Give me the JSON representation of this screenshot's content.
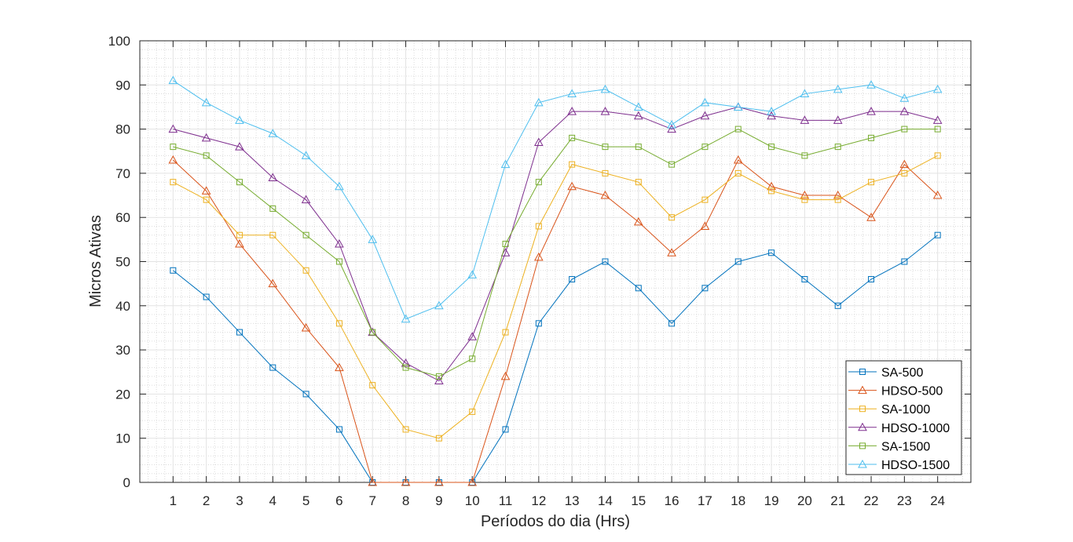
{
  "chart_data": {
    "type": "line",
    "title": "",
    "xlabel": "Períodos do dia (Hrs)",
    "ylabel": "Micros Ativas",
    "x": [
      1,
      2,
      3,
      4,
      5,
      6,
      7,
      8,
      9,
      10,
      11,
      12,
      13,
      14,
      15,
      16,
      17,
      18,
      19,
      20,
      21,
      22,
      23,
      24
    ],
    "xlim": [
      0,
      25
    ],
    "ylim": [
      0,
      100
    ],
    "yticks": [
      0,
      10,
      20,
      30,
      40,
      50,
      60,
      70,
      80,
      90,
      100
    ],
    "grid": true,
    "minor_grid": true,
    "legend_position": "bottom-right",
    "series": [
      {
        "name": "SA-500",
        "marker": "square",
        "color": "#0072BD",
        "values": [
          48,
          42,
          34,
          26,
          20,
          12,
          0,
          0,
          0,
          0,
          12,
          36,
          46,
          50,
          44,
          36,
          44,
          50,
          52,
          46,
          40,
          46,
          50,
          56
        ]
      },
      {
        "name": "HDSO-500",
        "marker": "triangle",
        "color": "#D95319",
        "values": [
          73,
          66,
          54,
          45,
          35,
          26,
          0,
          0,
          0,
          0,
          24,
          51,
          67,
          65,
          59,
          52,
          58,
          73,
          67,
          65,
          65,
          60,
          72,
          65
        ]
      },
      {
        "name": "SA-1000",
        "marker": "square",
        "color": "#EDB120",
        "values": [
          68,
          64,
          56,
          56,
          48,
          36,
          22,
          12,
          10,
          16,
          34,
          58,
          72,
          70,
          68,
          60,
          64,
          70,
          66,
          64,
          64,
          68,
          70,
          74
        ]
      },
      {
        "name": "HDSO-1000",
        "marker": "triangle",
        "color": "#7E2F8E",
        "values": [
          80,
          78,
          76,
          69,
          64,
          54,
          34,
          27,
          23,
          33,
          52,
          77,
          84,
          84,
          83,
          80,
          83,
          85,
          83,
          82,
          82,
          84,
          84,
          82
        ]
      },
      {
        "name": "SA-1500",
        "marker": "square",
        "color": "#77AC30",
        "values": [
          76,
          74,
          68,
          62,
          56,
          50,
          34,
          26,
          24,
          28,
          54,
          68,
          78,
          76,
          76,
          72,
          76,
          80,
          76,
          74,
          76,
          78,
          80,
          80
        ]
      },
      {
        "name": "HDSO-1500",
        "marker": "triangle",
        "color": "#4DBEEE",
        "values": [
          91,
          86,
          82,
          79,
          74,
          67,
          55,
          37,
          40,
          47,
          72,
          86,
          88,
          89,
          85,
          81,
          86,
          85,
          84,
          88,
          89,
          90,
          87,
          89
        ]
      }
    ]
  }
}
